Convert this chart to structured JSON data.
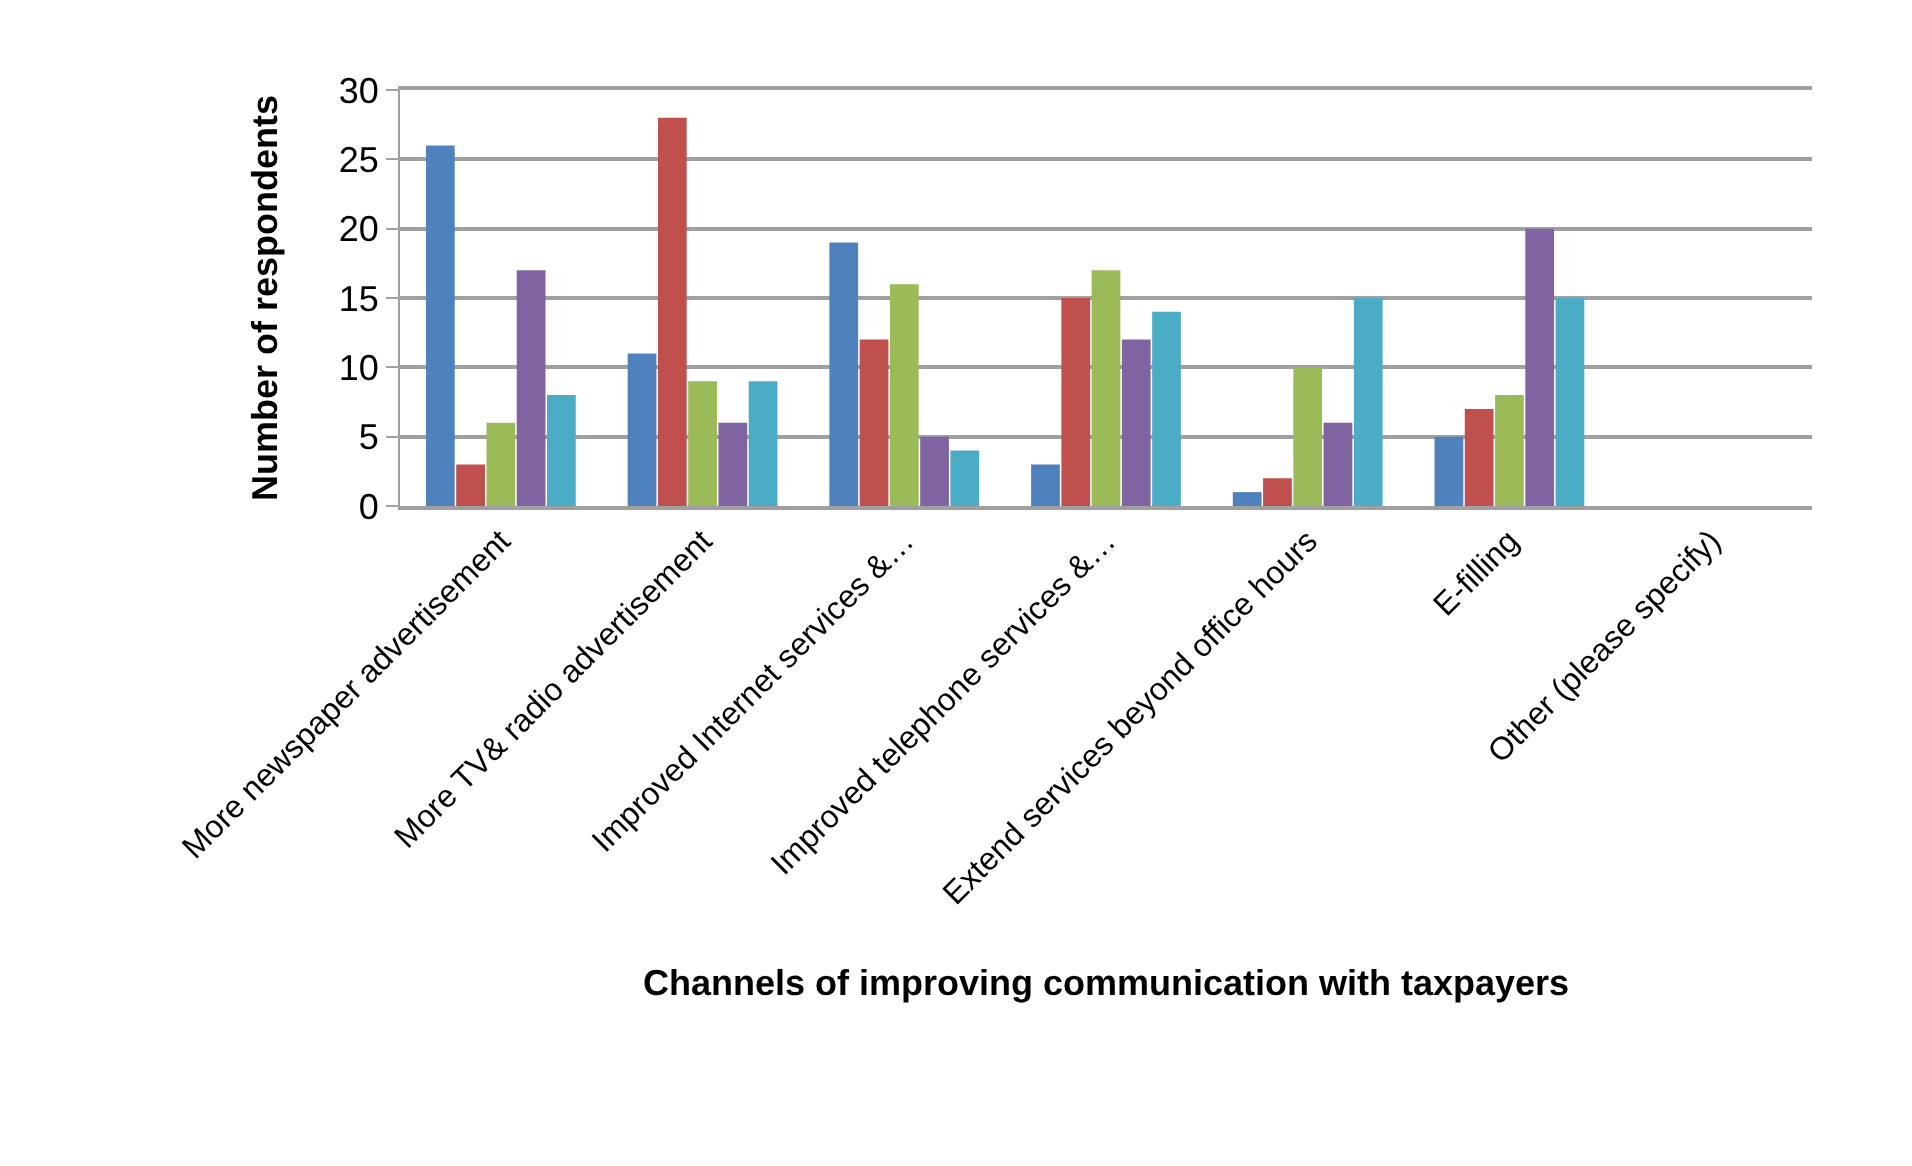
{
  "chart_data": {
    "type": "bar",
    "xlabel": "Channels of improving communication with taxpayers",
    "ylabel": "Number of respondents",
    "categories": [
      "More newspaper advertisement",
      "More TV& radio advertisement",
      "Improved Internet services &…",
      "Improved telephone services &…",
      "Extend services beyond office hours",
      "E-filling",
      "Other (please specify)"
    ],
    "series": [
      {
        "color": "#4f81bd",
        "values": [
          26,
          11,
          19,
          3,
          1,
          5,
          null
        ]
      },
      {
        "color": "#c0504d",
        "values": [
          3,
          28,
          12,
          15,
          2,
          7,
          null
        ]
      },
      {
        "color": "#9bbb59",
        "values": [
          6,
          9,
          16,
          17,
          10,
          8,
          null
        ]
      },
      {
        "color": "#8064a2",
        "values": [
          17,
          6,
          5,
          12,
          6,
          20,
          null
        ]
      },
      {
        "color": "#4bacc6",
        "values": [
          8,
          9,
          4,
          14,
          15,
          15,
          null
        ]
      }
    ],
    "ylim": [
      0,
      30
    ],
    "yticks": [
      0,
      5,
      10,
      15,
      20,
      25,
      30
    ],
    "grid": "y"
  }
}
